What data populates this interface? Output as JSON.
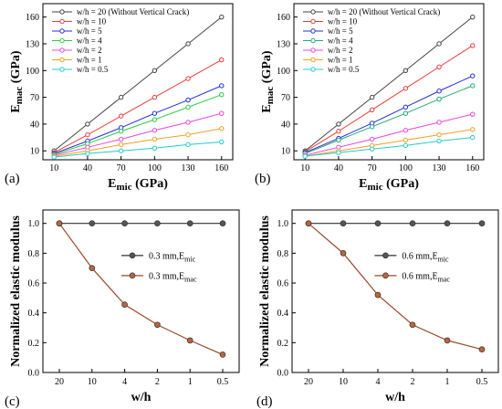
{
  "chart_data": [
    {
      "id": "a",
      "type": "line",
      "panel_label": "(a)",
      "xlabel": "E",
      "xlabel_sub": "mic",
      "xlabel_unit": " (GPa)",
      "ylabel": "E",
      "ylabel_sub": "mac",
      "ylabel_unit": " (GPa)",
      "x_ticks": [
        "10",
        "40",
        "70",
        "100",
        "130",
        "160"
      ],
      "y_ticks": [
        "10",
        "40",
        "70",
        "100",
        "130",
        "160"
      ],
      "ylim": [
        0,
        175
      ],
      "legend_position": "top-left",
      "x": [
        10,
        40,
        70,
        100,
        130,
        160
      ],
      "series": [
        {
          "name": "w/h = 20  (Without Vertical Crack)",
          "color": "#444444",
          "values": [
            10,
            40,
            70,
            100,
            130,
            160
          ]
        },
        {
          "name": "w/h = 10",
          "color": "#ee3b3b",
          "values": [
            8,
            28,
            49,
            70,
            91,
            112
          ]
        },
        {
          "name": "w/h = 5",
          "color": "#1f2fd6",
          "values": [
            7,
            21,
            36,
            52,
            67,
            83
          ]
        },
        {
          "name": "w/h = 4",
          "color": "#2ecc40",
          "values": [
            6,
            18,
            32,
            45,
            59,
            73
          ]
        },
        {
          "name": "w/h = 2",
          "color": "#ee44dd",
          "values": [
            5,
            14,
            23,
            33,
            42,
            52
          ]
        },
        {
          "name": "w/h = 1",
          "color": "#f0a020",
          "values": [
            4,
            10,
            17,
            23,
            28,
            35
          ]
        },
        {
          "name": "w/h = 0.5",
          "color": "#22cccc",
          "values": [
            3,
            7,
            10,
            13,
            17,
            20
          ]
        }
      ]
    },
    {
      "id": "b",
      "type": "line",
      "panel_label": "(b)",
      "xlabel": "E",
      "xlabel_sub": "mic",
      "xlabel_unit": " (GPa)",
      "ylabel": "E",
      "ylabel_sub": "mac",
      "ylabel_unit": " (GPa)",
      "x_ticks": [
        "10",
        "40",
        "70",
        "100",
        "130",
        "160"
      ],
      "y_ticks": [
        "10",
        "40",
        "70",
        "100",
        "130",
        "160"
      ],
      "ylim": [
        0,
        175
      ],
      "legend_position": "top-left",
      "x": [
        10,
        40,
        70,
        100,
        130,
        160
      ],
      "series": [
        {
          "name": "w/h = 20  (Without Vertical Crack)",
          "color": "#444444",
          "values": [
            10,
            40,
            70,
            100,
            130,
            160
          ]
        },
        {
          "name": "w/h = 10",
          "color": "#ee3b3b",
          "values": [
            9,
            32,
            56,
            80,
            104,
            128
          ]
        },
        {
          "name": "w/h = 5",
          "color": "#1f2fd6",
          "values": [
            8,
            24,
            41,
            59,
            77,
            94
          ]
        },
        {
          "name": "w/h = 4",
          "color": "#22aa77",
          "values": [
            7,
            22,
            37,
            52,
            68,
            83
          ]
        },
        {
          "name": "w/h = 2",
          "color": "#ee44dd",
          "values": [
            5,
            14,
            23,
            33,
            42,
            51
          ]
        },
        {
          "name": "w/h = 1",
          "color": "#f0a020",
          "values": [
            4,
            10,
            16,
            22,
            28,
            34
          ]
        },
        {
          "name": "w/h = 0.5",
          "color": "#22cccc",
          "values": [
            4,
            8,
            12,
            16,
            21,
            25
          ]
        }
      ]
    },
    {
      "id": "c",
      "type": "line",
      "panel_label": "(c)",
      "xlabel": "w/h",
      "ylabel": "Normalized elastic modulus",
      "categories": [
        "20",
        "10",
        "4",
        "2",
        "1",
        "0.5"
      ],
      "y_ticks": [
        "0.0",
        "0.2",
        "0.4",
        "0.6",
        "0.8",
        "1.0"
      ],
      "ylim": [
        0,
        1.09
      ],
      "legend_position": "right",
      "series": [
        {
          "name": "0.3 mm,E",
          "sub": "mic",
          "color": "#333333",
          "marker_fill": "#555555",
          "values": [
            1.0,
            1.0,
            1.0,
            1.0,
            1.0,
            1.0
          ]
        },
        {
          "name": "0.3 mm,E",
          "sub": "mac",
          "color": "#9a4a2a",
          "marker_fill": "#b5673f",
          "values": [
            1.0,
            0.7,
            0.455,
            0.32,
            0.215,
            0.12
          ]
        }
      ]
    },
    {
      "id": "d",
      "type": "line",
      "panel_label": "(d)",
      "xlabel": "w/h",
      "ylabel": "Normalized elastic modulus",
      "categories": [
        "20",
        "10",
        "4",
        "2",
        "1",
        "0.5"
      ],
      "y_ticks": [
        "0.0",
        "0.2",
        "0.4",
        "0.6",
        "0.8",
        "1.0"
      ],
      "ylim": [
        0,
        1.09
      ],
      "legend_position": "right",
      "series": [
        {
          "name": "0.6 mm,E",
          "sub": "mic",
          "color": "#333333",
          "marker_fill": "#555555",
          "values": [
            1.0,
            1.0,
            1.0,
            1.0,
            1.0,
            1.0
          ]
        },
        {
          "name": "0.6 mm,E",
          "sub": "mac",
          "color": "#9a4a2a",
          "marker_fill": "#b5673f",
          "values": [
            1.0,
            0.8,
            0.52,
            0.32,
            0.215,
            0.155
          ]
        }
      ]
    }
  ]
}
